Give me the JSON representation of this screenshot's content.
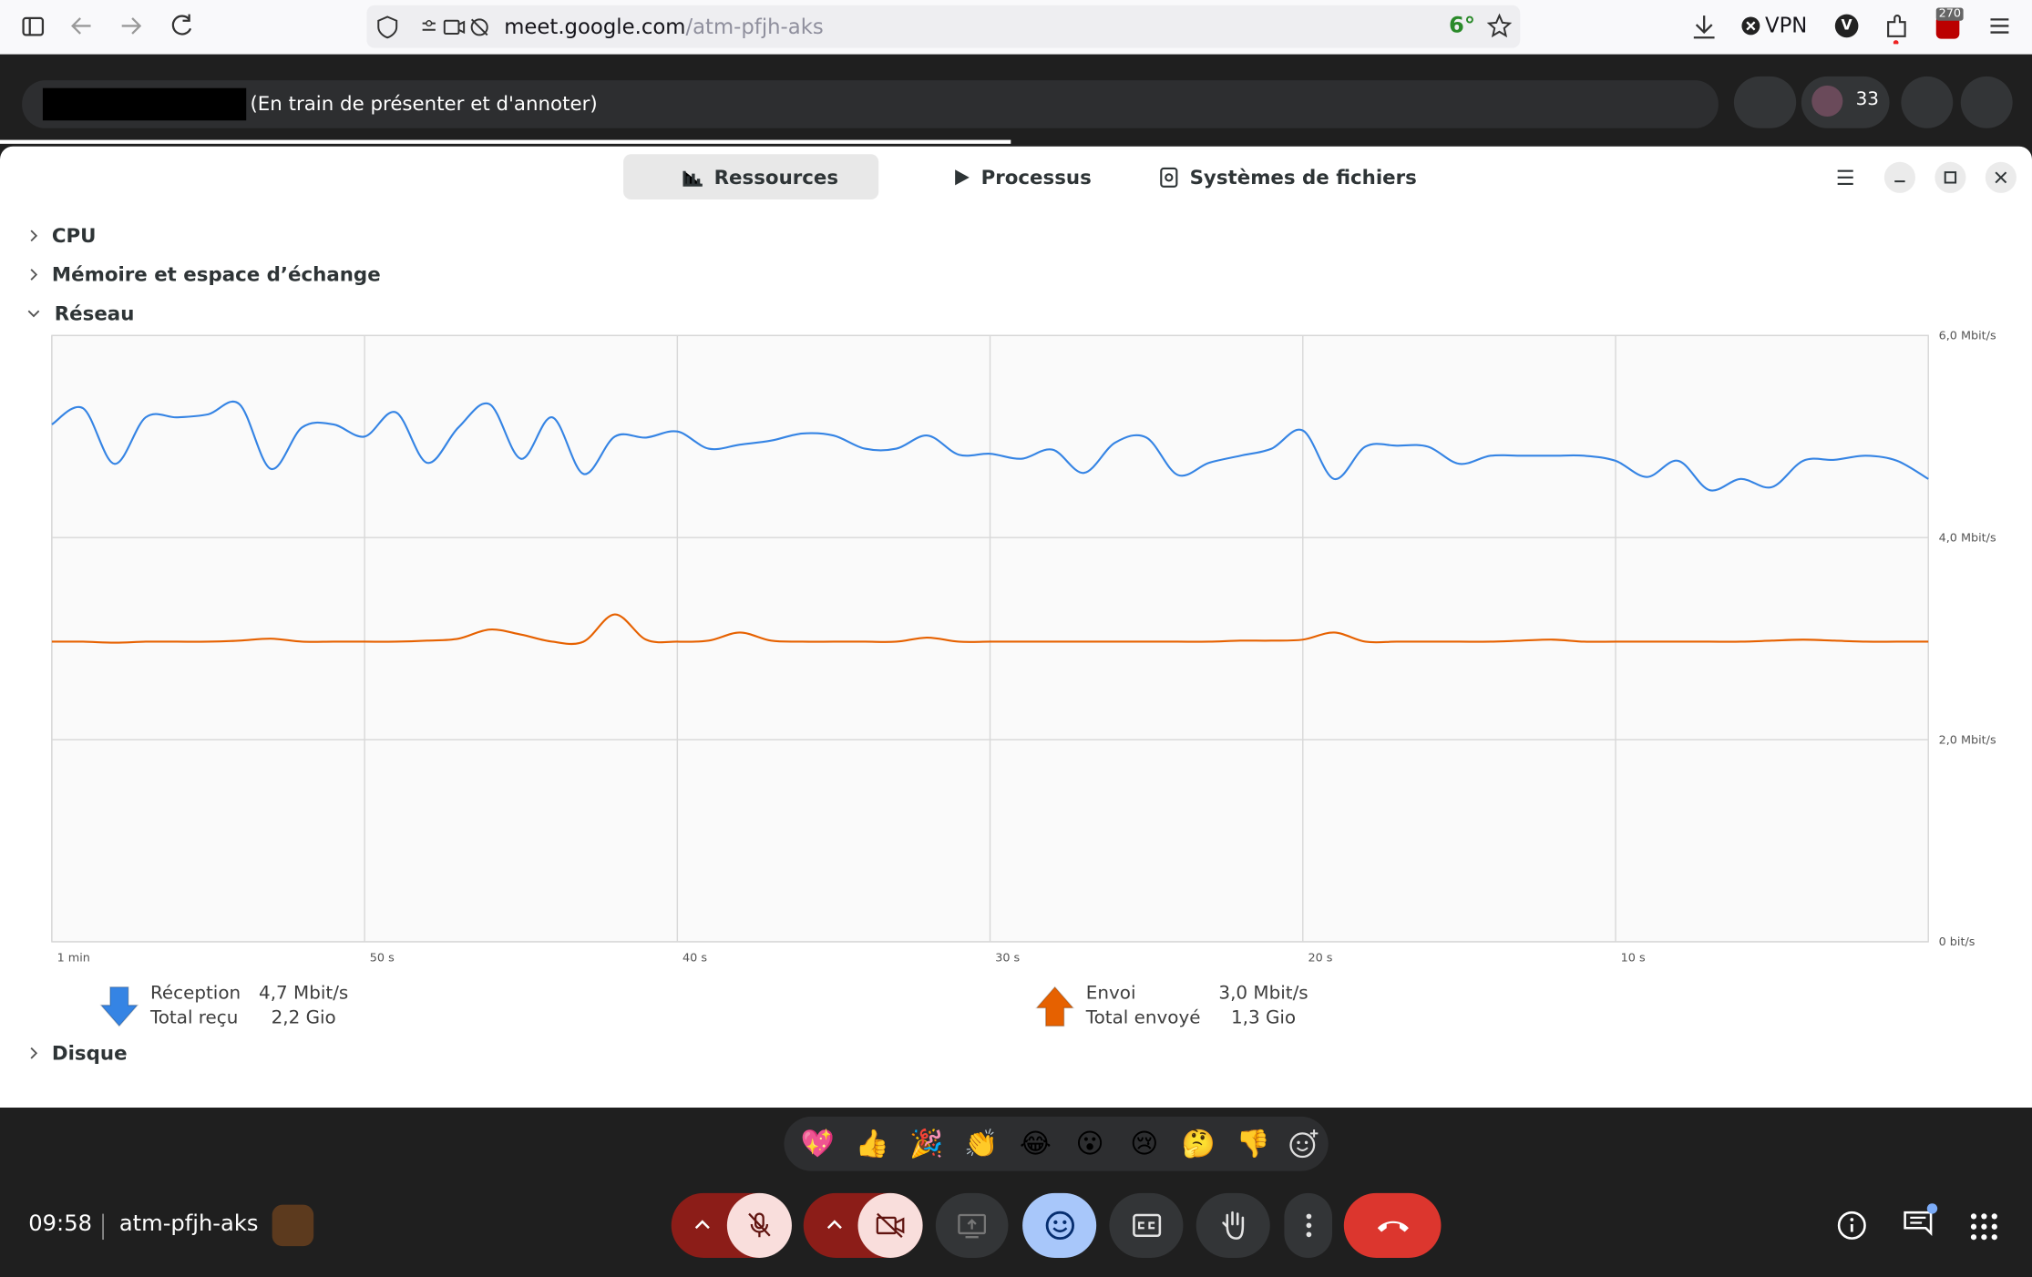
{
  "browser": {
    "url_host": "meet.google.com",
    "url_path": "/atm-pfjh-aks",
    "weather": "6°",
    "vpn": "VPN",
    "profile": "V",
    "badge": "270"
  },
  "meet_header": {
    "status": "(En train de présenter et d'annoter)",
    "participants": "33"
  },
  "monitor": {
    "tabs": [
      "Ressources",
      "Processus",
      "Systèmes de fichiers"
    ],
    "sections": [
      "CPU",
      "Mémoire et espace d’échange",
      "Réseau",
      "Disque"
    ]
  },
  "chart_data": {
    "type": "line",
    "x": [
      60,
      59,
      58,
      57,
      56,
      55,
      54,
      53,
      52,
      51,
      50,
      49,
      48,
      47,
      46,
      45,
      44,
      43,
      42,
      41,
      40,
      39,
      38,
      37,
      36,
      35,
      34,
      33,
      32,
      31,
      30,
      29,
      28,
      27,
      26,
      25,
      24,
      23,
      22,
      21,
      20,
      19,
      18,
      17,
      16,
      15,
      14,
      13,
      12,
      11,
      10,
      9,
      8,
      7,
      6,
      5,
      4,
      3,
      2,
      1,
      0
    ],
    "xlim": [
      60,
      0
    ],
    "xticks": [
      {
        "value": 60,
        "label": "1 min"
      },
      {
        "value": 50,
        "label": "50 s"
      },
      {
        "value": 40,
        "label": "40 s"
      },
      {
        "value": 30,
        "label": "30 s"
      },
      {
        "value": 20,
        "label": "20 s"
      },
      {
        "value": 10,
        "label": "10 s"
      }
    ],
    "ylim": [
      0,
      6
    ],
    "yticks": [
      {
        "value": 0,
        "label": "0 bit/s"
      },
      {
        "value": 2,
        "label": "2,0 Mbit/s"
      },
      {
        "value": 4,
        "label": "4,0 Mbit/s"
      },
      {
        "value": 6,
        "label": "6,0 Mbit/s"
      }
    ],
    "grid": true,
    "series": [
      {
        "name": "Réception",
        "color": "#3584e4",
        "rate": "4,7 Mbit/s",
        "total_label": "Total reçu",
        "total": "2,2 Gio",
        "values": [
          5.12,
          5.28,
          4.73,
          5.19,
          5.19,
          5.22,
          5.32,
          4.68,
          5.09,
          5.12,
          5.0,
          5.24,
          4.74,
          5.09,
          5.32,
          4.78,
          5.19,
          4.63,
          5.0,
          4.99,
          5.05,
          4.88,
          4.92,
          4.96,
          5.03,
          5.01,
          4.88,
          4.88,
          5.01,
          4.82,
          4.83,
          4.78,
          4.87,
          4.64,
          4.94,
          4.99,
          4.62,
          4.74,
          4.81,
          4.88,
          5.06,
          4.58,
          4.9,
          4.91,
          4.9,
          4.73,
          4.81,
          4.81,
          4.81,
          4.81,
          4.76,
          4.6,
          4.76,
          4.47,
          4.58,
          4.5,
          4.76,
          4.77,
          4.81,
          4.76,
          4.58
        ]
      },
      {
        "name": "Envoi",
        "color": "#e66100",
        "rate": "3,0 Mbit/s",
        "total_label": "Total envoyé",
        "total": "1,3 Gio",
        "values": [
          2.97,
          2.97,
          2.96,
          2.97,
          2.97,
          2.97,
          2.98,
          3.0,
          2.97,
          2.97,
          2.97,
          2.97,
          2.98,
          3.0,
          3.09,
          3.04,
          2.97,
          2.97,
          3.24,
          2.99,
          2.97,
          2.98,
          3.06,
          2.98,
          2.97,
          2.97,
          2.97,
          2.97,
          3.01,
          2.97,
          2.97,
          2.97,
          2.97,
          2.97,
          2.97,
          2.97,
          2.97,
          2.97,
          2.98,
          2.98,
          2.99,
          3.06,
          2.97,
          2.97,
          2.97,
          2.97,
          2.97,
          2.98,
          2.99,
          2.97,
          2.97,
          2.97,
          2.97,
          2.97,
          2.97,
          2.98,
          2.99,
          2.98,
          2.97,
          2.97,
          2.97
        ]
      }
    ]
  },
  "reactions": [
    "💖",
    "👍",
    "🎉",
    "👏",
    "😂",
    "😮",
    "😢",
    "🤔",
    "👎"
  ],
  "bottom_bar": {
    "time": "09:58",
    "meeting_code": "atm-pfjh-aks"
  }
}
